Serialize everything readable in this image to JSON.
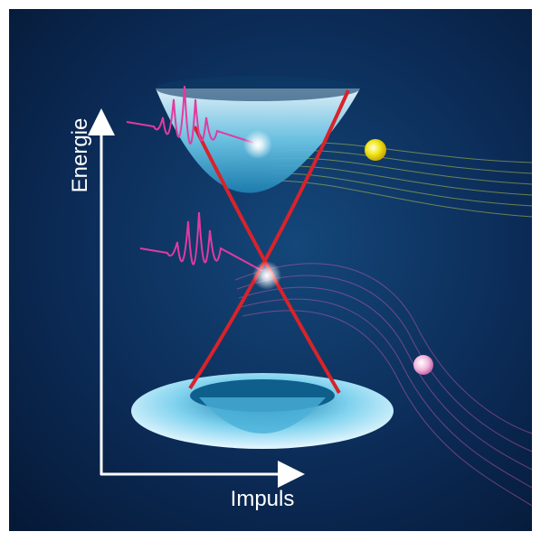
{
  "axes": {
    "y_label": "Energie",
    "x_label": "Impuls"
  }
}
